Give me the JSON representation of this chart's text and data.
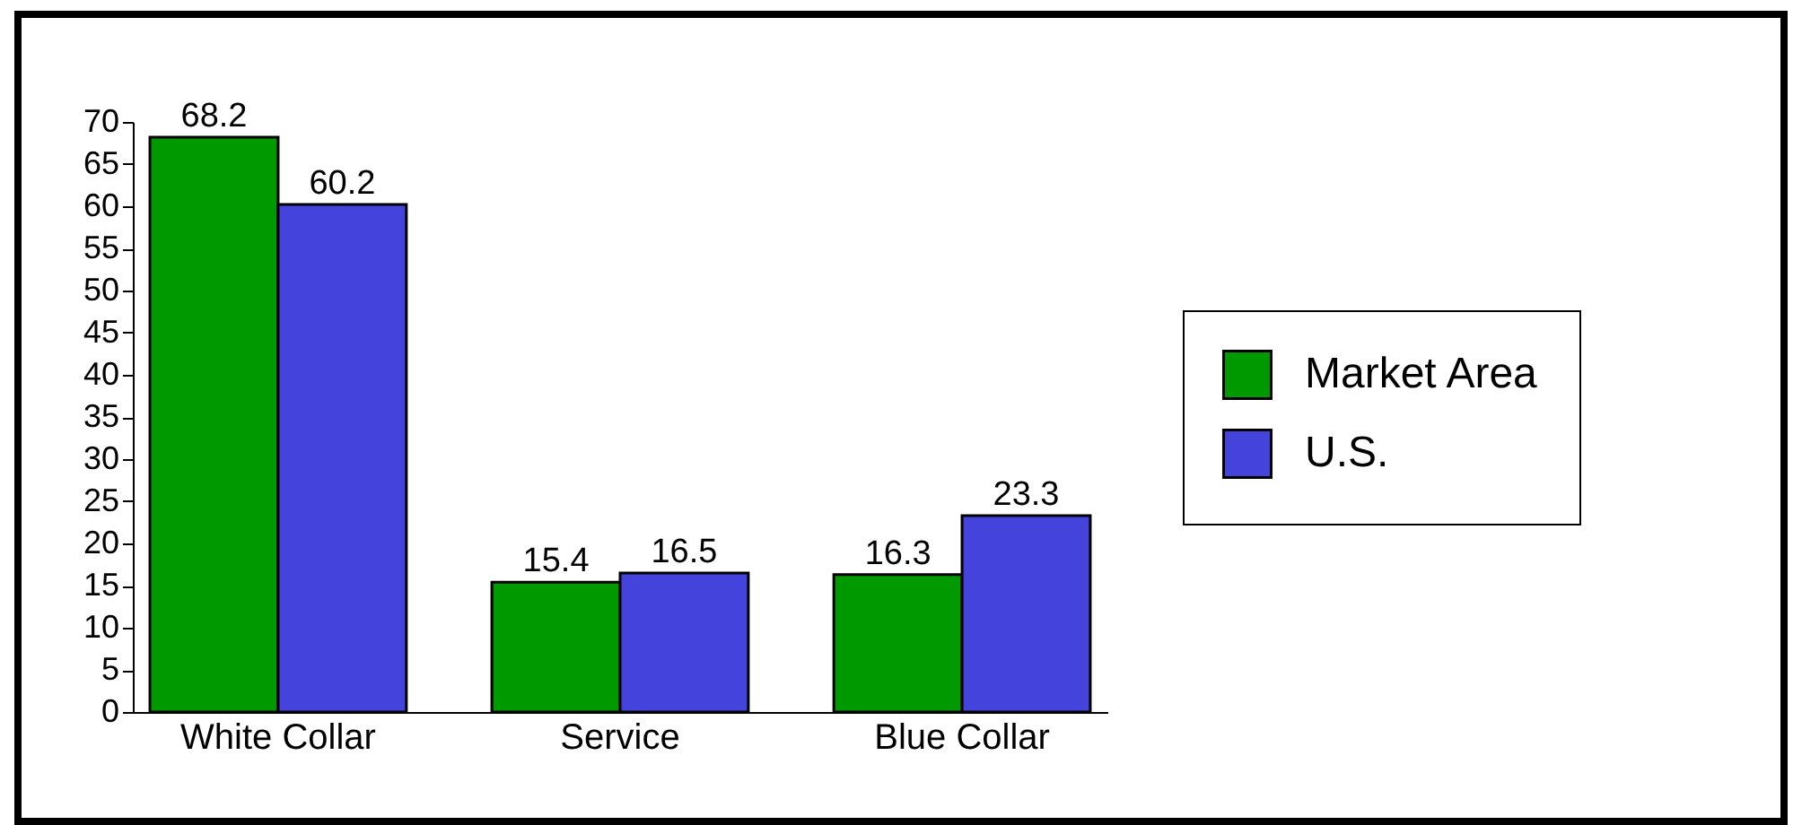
{
  "chart_data": {
    "type": "bar",
    "categories": [
      "White Collar",
      "Service",
      "Blue Collar"
    ],
    "series": [
      {
        "name": "Market Area",
        "color": "#009900",
        "values": [
          68.2,
          15.4,
          16.3
        ]
      },
      {
        "name": "U.S.",
        "color": "#4444dd",
        "values": [
          60.2,
          16.5,
          23.3
        ]
      }
    ],
    "ylim": [
      0,
      70
    ],
    "yticks": [
      0,
      5,
      10,
      15,
      20,
      25,
      30,
      35,
      40,
      45,
      50,
      55,
      60,
      65,
      70
    ],
    "grid": false,
    "legend": "right",
    "data_labels": true
  }
}
